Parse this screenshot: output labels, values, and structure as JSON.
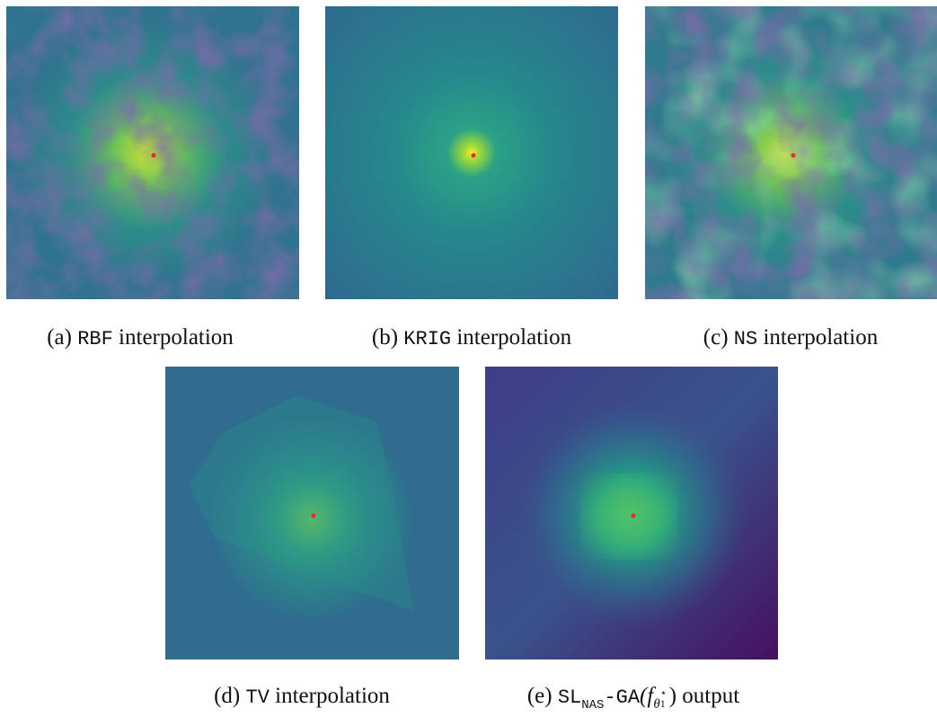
{
  "panels": [
    {
      "label": "(a)",
      "method": "RBF",
      "text": "interpolation"
    },
    {
      "label": "(b)",
      "method": "KRIG",
      "text": "interpolation"
    },
    {
      "label": "(c)",
      "method": "NS",
      "text": "interpolation"
    },
    {
      "label": "(d)",
      "method": "TV",
      "text": "interpolation"
    },
    {
      "label": "(e)",
      "method": "SL",
      "method_sub": "NAS",
      "method_tail": "-GA",
      "math_open": "(f",
      "math_sub": "θ",
      "math_subsub": "1",
      "math_sup": "⋆",
      "math_close": ")",
      "text": "output"
    }
  ]
}
